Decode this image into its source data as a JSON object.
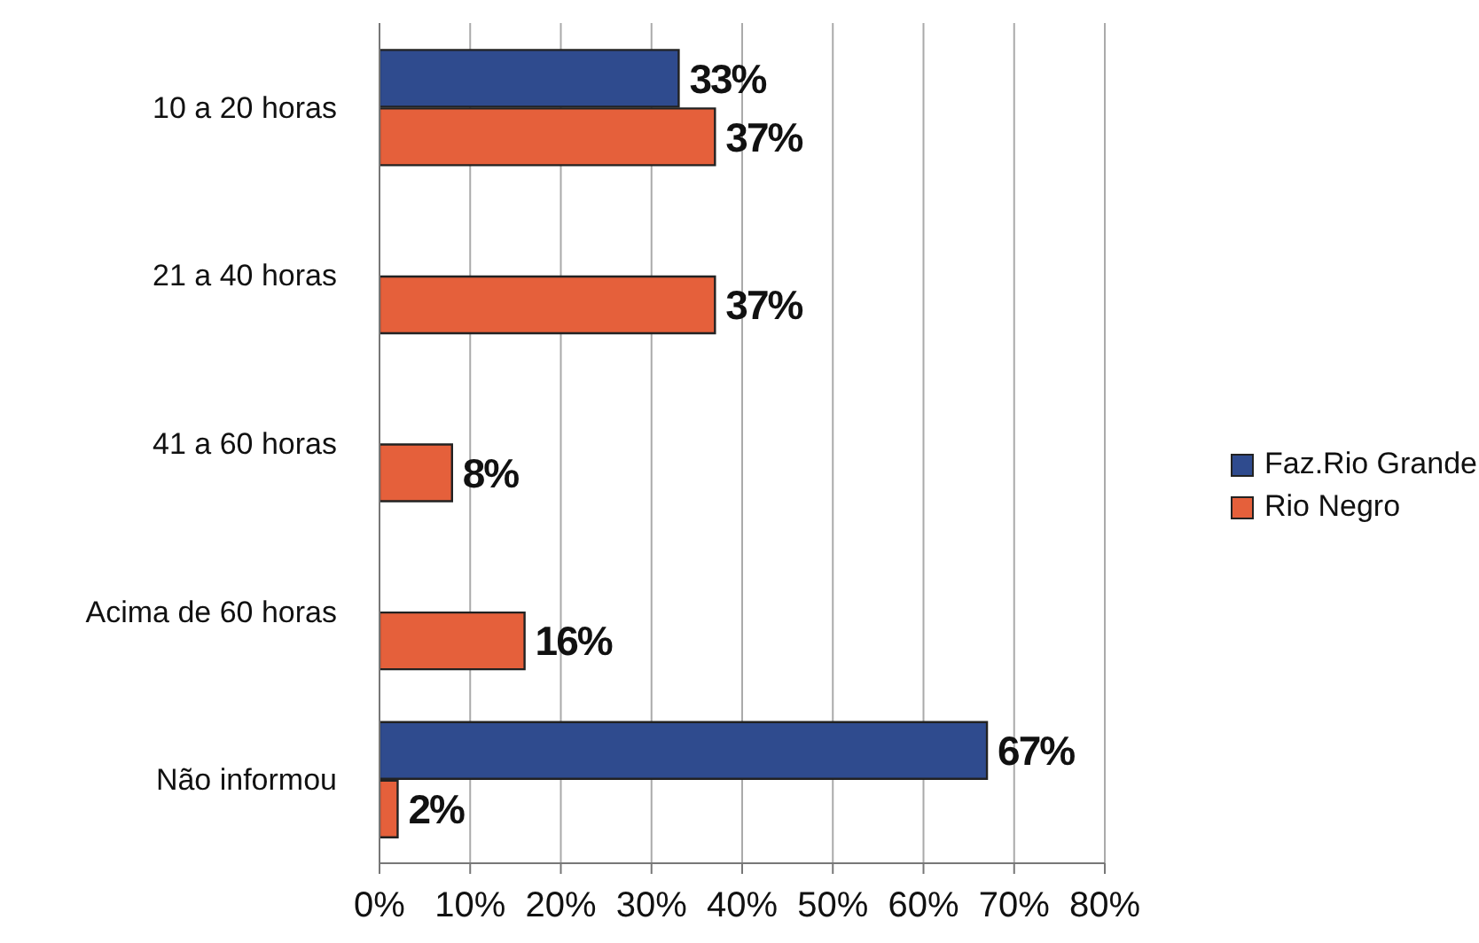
{
  "chart_data": {
    "type": "bar",
    "orientation": "horizontal",
    "categories": [
      "10 a 20 horas",
      "21 a 40 horas",
      "41 a 60 horas",
      "Acima de 60 horas",
      "Não informou"
    ],
    "series": [
      {
        "name": "Faz.Rio Grande",
        "color": "#2f4b8e",
        "values": [
          33,
          null,
          null,
          null,
          67
        ],
        "value_labels": [
          "33%",
          null,
          null,
          null,
          "67%"
        ]
      },
      {
        "name": "Rio Negro",
        "color": "#e5603b",
        "values": [
          37,
          37,
          8,
          16,
          2
        ],
        "value_labels": [
          "37%",
          "37%",
          "8%",
          "16%",
          "2%"
        ]
      }
    ],
    "xlim": [
      0,
      80
    ],
    "xticks": [
      {
        "value": 0,
        "label": "0%"
      },
      {
        "value": 10,
        "label": "10%"
      },
      {
        "value": 20,
        "label": "20%"
      },
      {
        "value": 30,
        "label": "30%"
      },
      {
        "value": 40,
        "label": "40%"
      },
      {
        "value": 50,
        "label": "50%"
      },
      {
        "value": 60,
        "label": "60%"
      },
      {
        "value": 70,
        "label": "70%"
      },
      {
        "value": 80,
        "label": "80%"
      }
    ],
    "grid": "x",
    "legend": "right"
  }
}
